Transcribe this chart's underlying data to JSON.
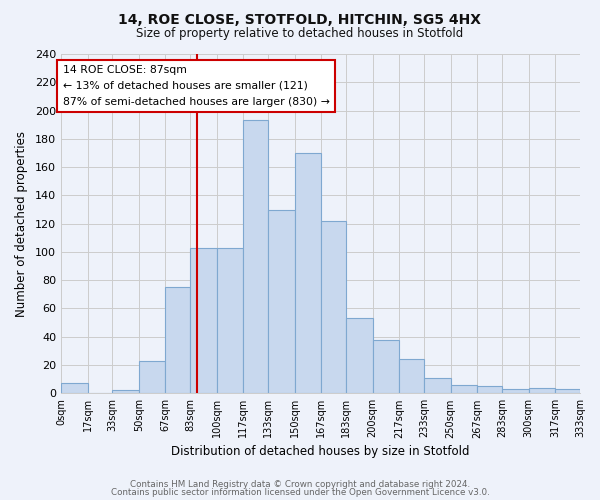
{
  "title": "14, ROE CLOSE, STOTFOLD, HITCHIN, SG5 4HX",
  "subtitle": "Size of property relative to detached houses in Stotfold",
  "xlabel": "Distribution of detached houses by size in Stotfold",
  "ylabel": "Number of detached properties",
  "bar_edges": [
    0,
    17,
    33,
    50,
    67,
    83,
    100,
    117,
    133,
    150,
    167,
    183,
    200,
    217,
    233,
    250,
    267,
    283,
    300,
    317,
    333
  ],
  "bar_heights": [
    7,
    0,
    2,
    23,
    75,
    103,
    103,
    193,
    130,
    170,
    122,
    53,
    38,
    24,
    11,
    6,
    5,
    3,
    4,
    3
  ],
  "bar_color": "#c8d8ee",
  "bar_edge_color": "#7fa8d0",
  "vline_x": 87,
  "vline_color": "#cc0000",
  "ylim": [
    0,
    240
  ],
  "yticks": [
    0,
    20,
    40,
    60,
    80,
    100,
    120,
    140,
    160,
    180,
    200,
    220,
    240
  ],
  "tick_labels": [
    "0sqm",
    "17sqm",
    "33sqm",
    "50sqm",
    "67sqm",
    "83sqm",
    "100sqm",
    "117sqm",
    "133sqm",
    "150sqm",
    "167sqm",
    "183sqm",
    "200sqm",
    "217sqm",
    "233sqm",
    "250sqm",
    "267sqm",
    "283sqm",
    "300sqm",
    "317sqm",
    "333sqm"
  ],
  "annotation_title": "14 ROE CLOSE: 87sqm",
  "annotation_line1": "← 13% of detached houses are smaller (121)",
  "annotation_line2": "87% of semi-detached houses are larger (830) →",
  "annotation_box_color": "#ffffff",
  "annotation_box_edge": "#cc0000",
  "footer1": "Contains HM Land Registry data © Crown copyright and database right 2024.",
  "footer2": "Contains public sector information licensed under the Open Government Licence v3.0.",
  "grid_color": "#cccccc",
  "background_color": "#eef2fa"
}
